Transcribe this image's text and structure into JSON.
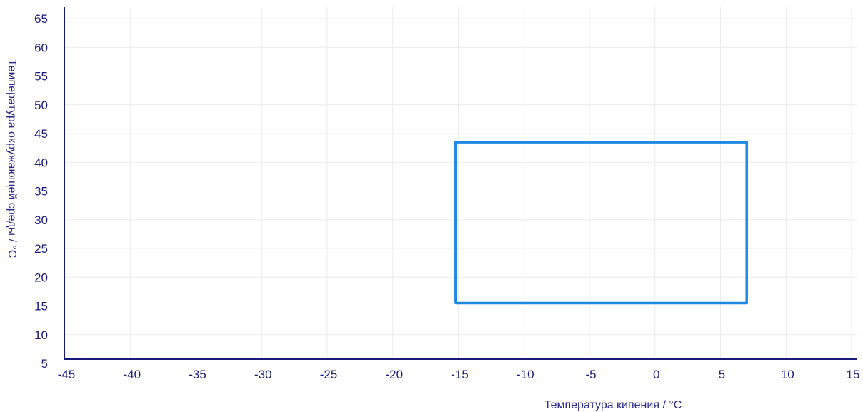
{
  "chart_data": {
    "type": "line",
    "xlabel": "Температура кипения / °C",
    "ylabel": "Температура окружающей среды / °C",
    "xlim": [
      -45,
      15
    ],
    "ylim": [
      5,
      65
    ],
    "x_ticks": [
      -45,
      -40,
      -35,
      -30,
      -25,
      -20,
      -15,
      -10,
      -5,
      0,
      5,
      10,
      15
    ],
    "y_ticks": [
      5,
      10,
      15,
      20,
      25,
      30,
      35,
      40,
      45,
      50,
      55,
      60,
      65
    ],
    "grid": true,
    "series": [
      {
        "color": "#1e88e5",
        "closed": true,
        "points": [
          {
            "x": -15.2,
            "y": 15.5
          },
          {
            "x": -15.2,
            "y": 43.5
          },
          {
            "x": 7.0,
            "y": 43.5
          },
          {
            "x": 7.0,
            "y": 15.5
          },
          {
            "x": -15.2,
            "y": 15.5
          }
        ]
      }
    ],
    "colors": {
      "axis": "#1a1a7a",
      "grid": "#ececec",
      "text": "#1a1a7a"
    }
  }
}
